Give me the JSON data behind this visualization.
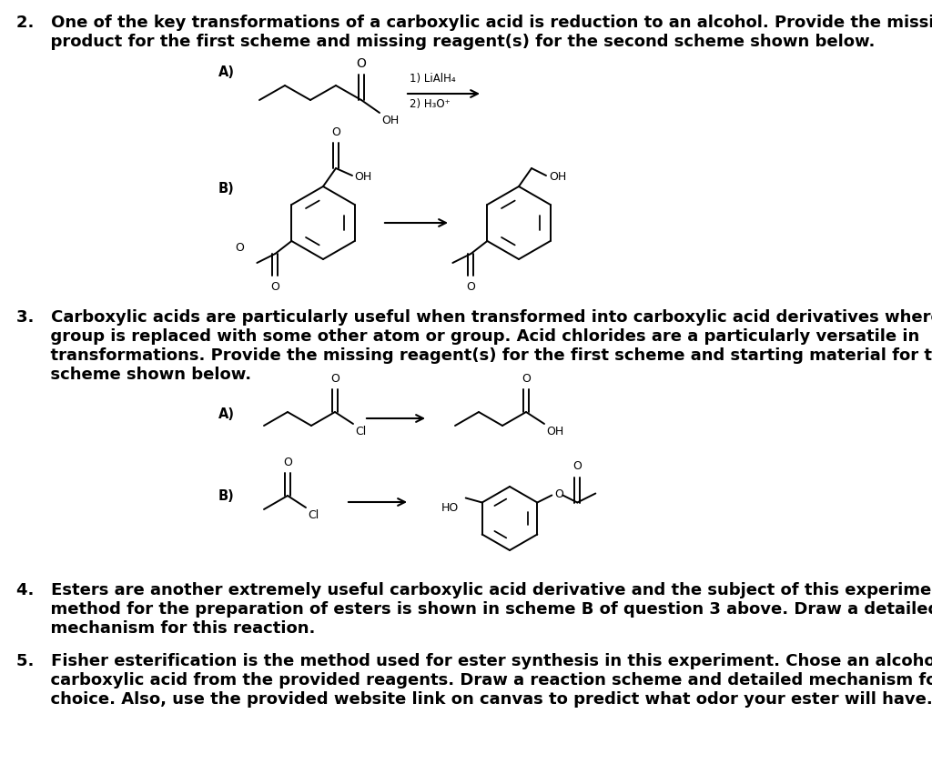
{
  "bg_color": "#ffffff",
  "text_color": "#000000",
  "font_family": "DejaVu Sans",
  "body_fontsize": 13.0,
  "label_fontsize": 10.5,
  "chem_fontsize": 9.0,
  "q2_line1": "2.   One of the key transformations of a carboxylic acid is reduction to an alcohol. Provide the missing",
  "q2_line2": "      product for the first scheme and missing reagent(s) for the second scheme shown below.",
  "q3_line1": "3.   Carboxylic acids are particularly useful when transformed into carboxylic acid derivatives where the -OH",
  "q3_line2": "      group is replaced with some other atom or group. Acid chlorides are a particularly versatile in",
  "q3_line3": "      transformations. Provide the missing reagent(s) for the first scheme and starting material for the second",
  "q3_line4": "      scheme shown below.",
  "q4_line1": "4.   Esters are another extremely useful carboxylic acid derivative and the subject of this experiment. One",
  "q4_line2": "      method for the preparation of esters is shown in scheme B of question 3 above. Draw a detailed",
  "q4_line3": "      mechanism for this reaction.",
  "q5_line1": "5.   Fisher esterification is the method used for ester synthesis in this experiment. Chose an alcohol and",
  "q5_line2": "      carboxylic acid from the provided reagents. Draw a reaction scheme and detailed mechanism for your",
  "q5_line3": "      choice. Also, use the provided website link on canvas to predict what odor your ester will have."
}
